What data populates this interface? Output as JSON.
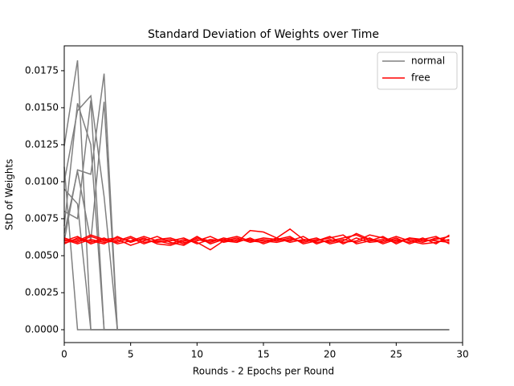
{
  "chart_data": {
    "type": "line",
    "title": "Standard Deviation of Weights over Time",
    "xlabel": "Rounds - 2 Epochs per Round",
    "ylabel": "StD of Weights",
    "x": [
      0,
      1,
      2,
      3,
      4,
      5,
      6,
      7,
      8,
      9,
      10,
      11,
      12,
      13,
      14,
      15,
      16,
      17,
      18,
      19,
      20,
      21,
      22,
      23,
      24,
      25,
      26,
      27,
      28,
      29
    ],
    "xlim": [
      0,
      30
    ],
    "xticks": [
      0,
      5,
      10,
      15,
      20,
      25,
      30
    ],
    "ylim": [
      -0.00087,
      0.01918
    ],
    "yticks": [
      {
        "value": 0,
        "label": "0.0000"
      },
      {
        "value": 0.0025,
        "label": "0.0025"
      },
      {
        "value": 0.005,
        "label": "0.0050"
      },
      {
        "value": 0.0075,
        "label": "0.0075"
      },
      {
        "value": 0.01,
        "label": "0.0100"
      },
      {
        "value": 0.0125,
        "label": "0.0125"
      },
      {
        "value": 0.015,
        "label": "0.0150"
      },
      {
        "value": 0.0175,
        "label": "0.0175"
      }
    ],
    "legend": "upper right",
    "series": [
      {
        "name": "normal",
        "color": "#808080",
        "lines": [
          [
            0.0124,
            0.0182,
            0,
            0,
            0,
            0,
            0,
            0,
            0,
            0,
            0,
            0,
            0,
            0,
            0,
            0,
            0,
            0,
            0,
            0,
            0,
            0,
            0,
            0,
            0,
            0,
            0,
            0,
            0,
            0
          ],
          [
            0.007,
            0.0153,
            0.0125,
            0,
            0,
            0,
            0,
            0,
            0,
            0,
            0,
            0,
            0,
            0,
            0,
            0,
            0,
            0,
            0,
            0,
            0,
            0,
            0,
            0,
            0,
            0,
            0,
            0,
            0,
            0
          ],
          [
            0.01,
            0.0148,
            0.0158,
            0.009,
            0,
            0,
            0,
            0,
            0,
            0,
            0,
            0,
            0,
            0,
            0,
            0,
            0,
            0,
            0,
            0,
            0,
            0,
            0,
            0,
            0,
            0,
            0,
            0,
            0,
            0
          ],
          [
            0.006,
            0.0108,
            0.0105,
            0.0173,
            0,
            0,
            0,
            0,
            0,
            0,
            0,
            0,
            0,
            0,
            0,
            0,
            0,
            0,
            0,
            0,
            0,
            0,
            0,
            0,
            0,
            0,
            0,
            0,
            0,
            0
          ],
          [
            0.008,
            0.0075,
            0.0155,
            0,
            0,
            0,
            0,
            0,
            0,
            0,
            0,
            0,
            0,
            0,
            0,
            0,
            0,
            0,
            0,
            0,
            0,
            0,
            0,
            0,
            0,
            0,
            0,
            0,
            0,
            0
          ],
          [
            0.011,
            0,
            0,
            0,
            0,
            0,
            0,
            0,
            0,
            0,
            0,
            0,
            0,
            0,
            0,
            0,
            0,
            0,
            0,
            0,
            0,
            0,
            0,
            0,
            0,
            0,
            0,
            0,
            0,
            0
          ],
          [
            0.0095,
            0.0085,
            0,
            0,
            0,
            0,
            0,
            0,
            0,
            0,
            0,
            0,
            0,
            0,
            0,
            0,
            0,
            0,
            0,
            0,
            0,
            0,
            0,
            0,
            0,
            0,
            0,
            0,
            0,
            0
          ],
          [
            0.0065,
            0.0107,
            0.006,
            0.0154,
            0,
            0,
            0,
            0,
            0,
            0,
            0,
            0,
            0,
            0,
            0,
            0,
            0,
            0,
            0,
            0,
            0,
            0,
            0,
            0,
            0,
            0,
            0,
            0,
            0,
            0
          ]
        ]
      },
      {
        "name": "free",
        "color": "#ff0000",
        "lines": [
          [
            0.006,
            0.0061,
            0.0059,
            0.0062,
            0.0058,
            0.006,
            0.0061,
            0.0059,
            0.006,
            0.0062,
            0.0058,
            0.0061,
            0.006,
            0.0059,
            0.0067,
            0.0066,
            0.0062,
            0.0068,
            0.0061,
            0.0059,
            0.006,
            0.0062,
            0.0064,
            0.006,
            0.0061,
            0.0059,
            0.0062,
            0.006,
            0.0061,
            0.0063
          ],
          [
            0.0058,
            0.0062,
            0.006,
            0.0058,
            0.0063,
            0.0059,
            0.0062,
            0.0058,
            0.0057,
            0.006,
            0.0061,
            0.0059,
            0.0062,
            0.006,
            0.0061,
            0.006,
            0.0059,
            0.0061,
            0.006,
            0.0062,
            0.0058,
            0.006,
            0.0065,
            0.0061,
            0.0059,
            0.0062,
            0.0058,
            0.0061,
            0.006,
            0.0059
          ],
          [
            0.0062,
            0.0059,
            0.0063,
            0.006,
            0.0061,
            0.0057,
            0.006,
            0.0063,
            0.0059,
            0.0057,
            0.0062,
            0.006,
            0.0061,
            0.0063,
            0.006,
            0.0062,
            0.0061,
            0.006,
            0.0063,
            0.0058,
            0.0061,
            0.0059,
            0.006,
            0.0064,
            0.0062,
            0.006,
            0.0061,
            0.0059,
            0.0062,
            0.006
          ],
          [
            0.0059,
            0.006,
            0.0064,
            0.0061,
            0.0059,
            0.0062,
            0.0058,
            0.0061,
            0.0062,
            0.0059,
            0.006,
            0.0063,
            0.0059,
            0.0061,
            0.006,
            0.0059,
            0.0062,
            0.0059,
            0.0061,
            0.006,
            0.0063,
            0.0058,
            0.0062,
            0.0059,
            0.006,
            0.0063,
            0.006,
            0.0058,
            0.0059,
            0.0061
          ],
          [
            0.0061,
            0.0058,
            0.0061,
            0.0059,
            0.006,
            0.0063,
            0.0059,
            0.006,
            0.0058,
            0.0061,
            0.0059,
            0.0054,
            0.006,
            0.0062,
            0.0059,
            0.0061,
            0.006,
            0.0062,
            0.0059,
            0.0061,
            0.0059,
            0.0061,
            0.0059,
            0.0062,
            0.0058,
            0.0061,
            0.0059,
            0.0062,
            0.0058,
            0.0064
          ],
          [
            0.006,
            0.0063,
            0.0058,
            0.0061,
            0.0062,
            0.006,
            0.0063,
            0.006,
            0.0061,
            0.0058,
            0.0063,
            0.0058,
            0.0061,
            0.0059,
            0.0062,
            0.0058,
            0.0061,
            0.0063,
            0.0058,
            0.006,
            0.0062,
            0.0064,
            0.0058,
            0.006,
            0.0063,
            0.0058,
            0.0062,
            0.0061,
            0.0063,
            0.0058
          ]
        ]
      }
    ]
  }
}
